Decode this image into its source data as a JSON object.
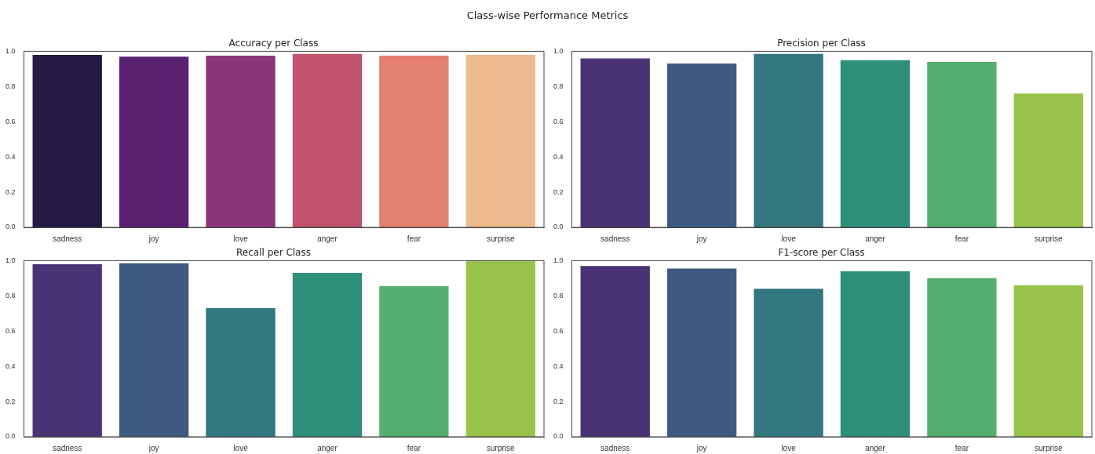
{
  "chart_data": [
    {
      "type": "bar",
      "title": "Accuracy per Class",
      "annotations": [
        "Class-wise Performance Metrics"
      ],
      "categories": [
        "sadness",
        "joy",
        "love",
        "anger",
        "fear",
        "surprise"
      ],
      "values": [
        0.98,
        0.97,
        0.975,
        0.985,
        0.975,
        0.98
      ],
      "colors": [
        "#251a43",
        "#5b2171",
        "#893578",
        "#c2536f",
        "#e38070",
        "#edb98e"
      ],
      "ylim": [
        0,
        1
      ],
      "yticks": [
        {
          "value": 0,
          "label": "0.0"
        },
        {
          "value": 0.2,
          "label": "0.2"
        },
        {
          "value": 0.4,
          "label": "0.4"
        },
        {
          "value": 0.6,
          "label": "0.6"
        },
        {
          "value": 0.8,
          "label": "0.8"
        },
        {
          "value": 1,
          "label": "1.0"
        }
      ]
    },
    {
      "type": "bar",
      "title": "Precision per Class",
      "categories": [
        "sadness",
        "joy",
        "love",
        "anger",
        "fear",
        "surprise"
      ],
      "values": [
        0.96,
        0.93,
        0.985,
        0.95,
        0.94,
        0.76
      ],
      "colors": [
        "#4a3375",
        "#3e5a82",
        "#32767f",
        "#2e8f7a",
        "#55ae70",
        "#98c24a"
      ],
      "ylim": [
        0,
        1
      ],
      "yticks": [
        {
          "value": 0,
          "label": "0.0"
        },
        {
          "value": 0.2,
          "label": "0.2"
        },
        {
          "value": 0.4,
          "label": "0.4"
        },
        {
          "value": 0.6,
          "label": "0.6"
        },
        {
          "value": 0.8,
          "label": "0.8"
        },
        {
          "value": 1,
          "label": "1.0"
        }
      ]
    },
    {
      "type": "bar",
      "title": "Recall per Class",
      "categories": [
        "sadness",
        "joy",
        "love",
        "anger",
        "fear",
        "surprise"
      ],
      "values": [
        0.98,
        0.985,
        0.73,
        0.93,
        0.855,
        1.0
      ],
      "colors": [
        "#4a3375",
        "#3e5a82",
        "#32767f",
        "#2e8f7a",
        "#55ae70",
        "#98c24a"
      ],
      "ylim": [
        0,
        1
      ],
      "yticks": [
        {
          "value": 0,
          "label": "0.0"
        },
        {
          "value": 0.2,
          "label": "0.2"
        },
        {
          "value": 0.4,
          "label": "0.4"
        },
        {
          "value": 0.6,
          "label": "0.6"
        },
        {
          "value": 0.8,
          "label": "0.8"
        },
        {
          "value": 1,
          "label": "1.0"
        }
      ]
    },
    {
      "type": "bar",
      "title": "F1-score per Class",
      "categories": [
        "sadness",
        "joy",
        "love",
        "anger",
        "fear",
        "surprise"
      ],
      "values": [
        0.97,
        0.955,
        0.84,
        0.94,
        0.9,
        0.86
      ],
      "colors": [
        "#4a3375",
        "#3e5a82",
        "#32767f",
        "#2e8f7a",
        "#55ae70",
        "#98c24a"
      ],
      "ylim": [
        0,
        1
      ],
      "yticks": [
        {
          "value": 0,
          "label": "0.0"
        },
        {
          "value": 0.2,
          "label": "0.2"
        },
        {
          "value": 0.4,
          "label": "0.4"
        },
        {
          "value": 0.6,
          "label": "0.6"
        },
        {
          "value": 0.8,
          "label": "0.8"
        },
        {
          "value": 1,
          "label": "1.0"
        }
      ]
    }
  ]
}
